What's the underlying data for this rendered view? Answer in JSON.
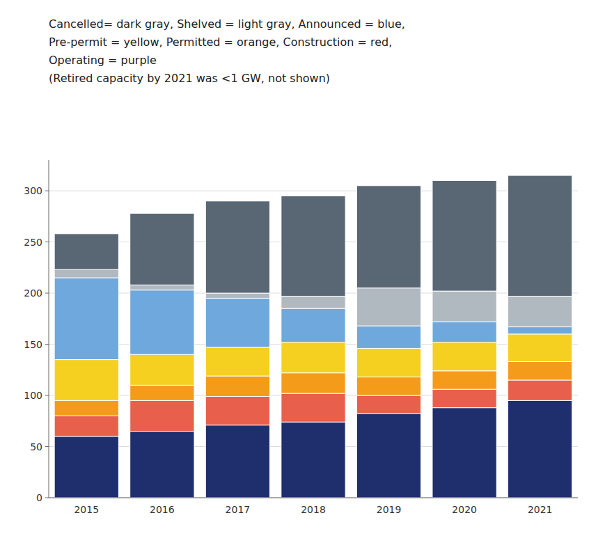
{
  "chart_data": {
    "type": "bar",
    "stacked": true,
    "annotations": [
      "Cancelled= dark gray, Shelved = light gray, Announced = blue,",
      "Pre-permit = yellow, Permitted = orange, Construction = red,",
      "Operating = purple",
      "(Retired capacity by 2021 was <1 GW, not shown)"
    ],
    "categories": [
      "2015",
      "2016",
      "2017",
      "2018",
      "2019",
      "2020",
      "2021"
    ],
    "series": [
      {
        "color": "#1f2f6e",
        "values": [
          60,
          65,
          71,
          74,
          82,
          88,
          95
        ]
      },
      {
        "color": "#e8604c",
        "values": [
          20,
          30,
          28,
          28,
          18,
          18,
          20
        ]
      },
      {
        "color": "#f59b1a",
        "values": [
          15,
          15,
          20,
          20,
          18,
          18,
          18
        ]
      },
      {
        "color": "#f5d020",
        "values": [
          40,
          30,
          28,
          30,
          28,
          28,
          27
        ]
      },
      {
        "color": "#6fa8dc",
        "values": [
          80,
          63,
          48,
          33,
          22,
          20,
          7
        ]
      },
      {
        "color": "#b0b8c0",
        "values": [
          8,
          5,
          5,
          12,
          37,
          30,
          30
        ]
      },
      {
        "color": "#596775",
        "values": [
          35,
          70,
          90,
          98,
          100,
          108,
          118
        ]
      }
    ],
    "ylim": [
      0,
      330
    ],
    "yticks": [
      0,
      50,
      100,
      150,
      200,
      250,
      300
    ],
    "grid": true
  }
}
